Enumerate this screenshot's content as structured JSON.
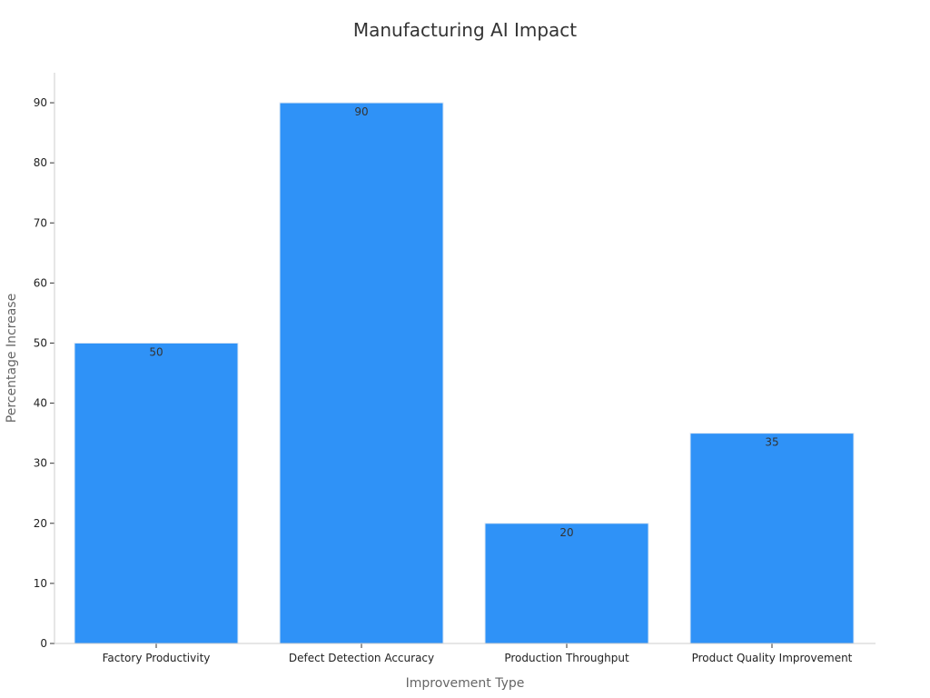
{
  "chart_data": {
    "type": "bar",
    "title": "Manufacturing AI Impact",
    "xlabel": "Improvement Type",
    "ylabel": "Percentage Increase",
    "categories": [
      "Factory Productivity",
      "Defect Detection Accuracy",
      "Production Throughput",
      "Product Quality Improvement"
    ],
    "values": [
      50,
      90,
      20,
      35
    ],
    "data_labels": [
      "50",
      "90",
      "20",
      "35"
    ],
    "ylim": [
      0,
      95
    ],
    "yticks": [
      0,
      10,
      20,
      30,
      40,
      50,
      60,
      70,
      80,
      90
    ],
    "ytick_labels": [
      "0",
      "10",
      "20",
      "30",
      "40",
      "50",
      "60",
      "70",
      "80",
      "90"
    ],
    "grid": false,
    "legend": "none",
    "colors": {
      "bar": "#2f92f7",
      "bar_edge": "#dfe9f5"
    }
  }
}
